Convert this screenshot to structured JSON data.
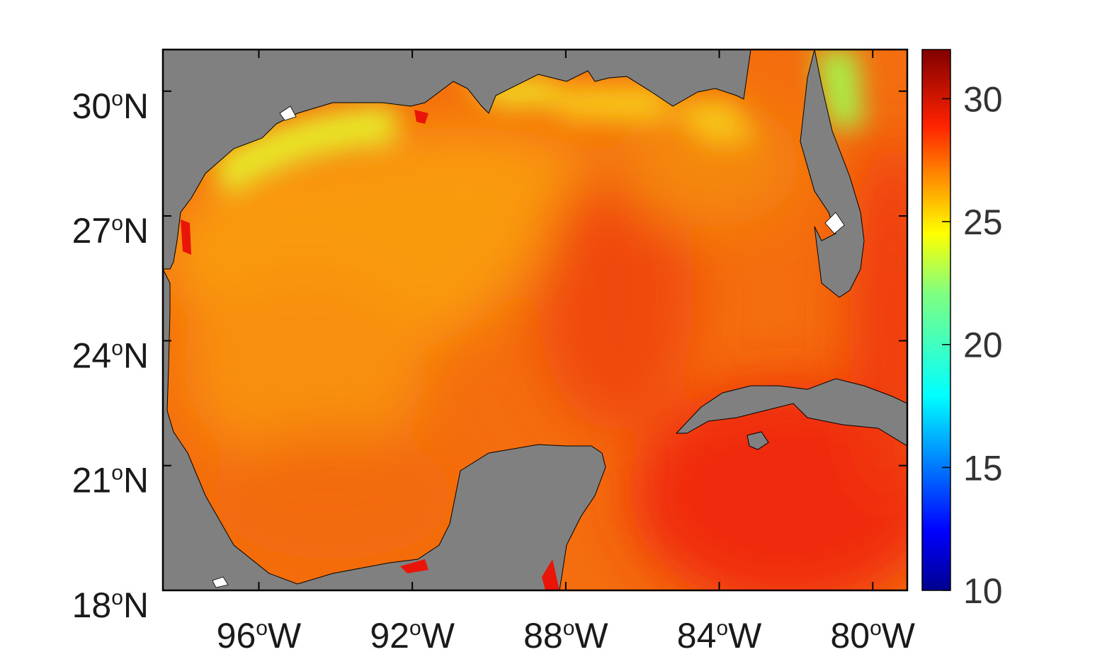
{
  "map": {
    "lon_ticks": [
      {
        "deg": "96",
        "sup": "o",
        "dir": "W",
        "value": -96
      },
      {
        "deg": "92",
        "sup": "o",
        "dir": "W",
        "value": -92
      },
      {
        "deg": "88",
        "sup": "o",
        "dir": "W",
        "value": -88
      },
      {
        "deg": "84",
        "sup": "o",
        "dir": "W",
        "value": -84
      },
      {
        "deg": "80",
        "sup": "o",
        "dir": "W",
        "value": -80
      }
    ],
    "lat_ticks": [
      {
        "deg": "30",
        "sup": "o",
        "dir": "N",
        "value": 30
      },
      {
        "deg": "27",
        "sup": "o",
        "dir": "N",
        "value": 27
      },
      {
        "deg": "24",
        "sup": "o",
        "dir": "N",
        "value": 24
      },
      {
        "deg": "21",
        "sup": "o",
        "dir": "N",
        "value": 21
      },
      {
        "deg": "18",
        "sup": "o",
        "dir": "N",
        "value": 18
      }
    ],
    "land_color": "#808080",
    "colormap": "jet"
  },
  "colorbar": {
    "min": 10,
    "max": 32,
    "ticks": [
      {
        "label": "30",
        "value": 30
      },
      {
        "label": "25",
        "value": 25
      },
      {
        "label": "20",
        "value": 20
      },
      {
        "label": "15",
        "value": 15
      },
      {
        "label": "10",
        "value": 10
      }
    ]
  }
}
